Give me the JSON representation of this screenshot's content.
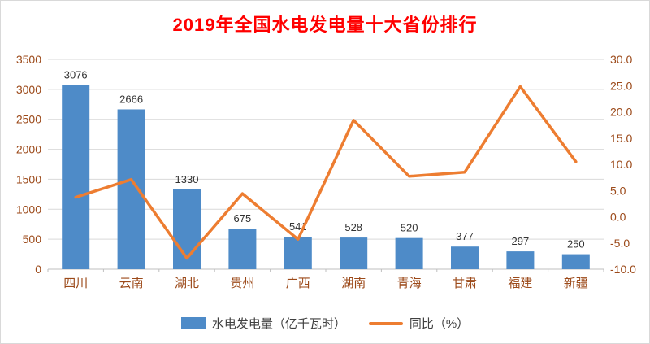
{
  "chart_data": {
    "type": "bar",
    "subtype": "bar+line combo",
    "title": "2019年全国水电发电量十大省份排行",
    "categories": [
      "四川",
      "云南",
      "湖北",
      "贵州",
      "广西",
      "湖南",
      "青海",
      "甘肃",
      "福建",
      "新疆"
    ],
    "series": [
      {
        "name": "水电发电量（亿千瓦时）",
        "type": "bar",
        "axis": "left",
        "values": [
          3076,
          2666,
          1330,
          675,
          541,
          528,
          520,
          377,
          297,
          250
        ]
      },
      {
        "name": "同比（%）",
        "type": "line",
        "axis": "right",
        "values": [
          3.7,
          7.1,
          -7.9,
          4.4,
          -4.3,
          18.4,
          7.7,
          8.5,
          24.8,
          10.5
        ]
      }
    ],
    "left_axis": {
      "min": 0,
      "max": 3500,
      "step": 500,
      "ticks": [
        "3500",
        "3000",
        "2500",
        "2000",
        "1500",
        "1000",
        "500",
        "0"
      ]
    },
    "right_axis": {
      "min": -10,
      "max": 30,
      "step": 5,
      "ticks": [
        "30.0",
        "25.0",
        "20.0",
        "15.0",
        "10.0",
        "5.0",
        "0.0",
        "-5.0",
        "-10.0"
      ]
    },
    "legend": [
      "水电发电量（亿千瓦时）",
      "同比（%）"
    ],
    "grid": "horizontal",
    "legend_position": "bottom",
    "colors": {
      "bar": "#4E8BC8",
      "line": "#ED7D31",
      "title": "#FF0000",
      "axis_label": "#9C4A1A",
      "data_label": "#333333",
      "legend_text": "#404040",
      "gridline": "#D9D9D9",
      "axis_line": "#BFBFBF",
      "background": "#FFFFFF"
    }
  }
}
